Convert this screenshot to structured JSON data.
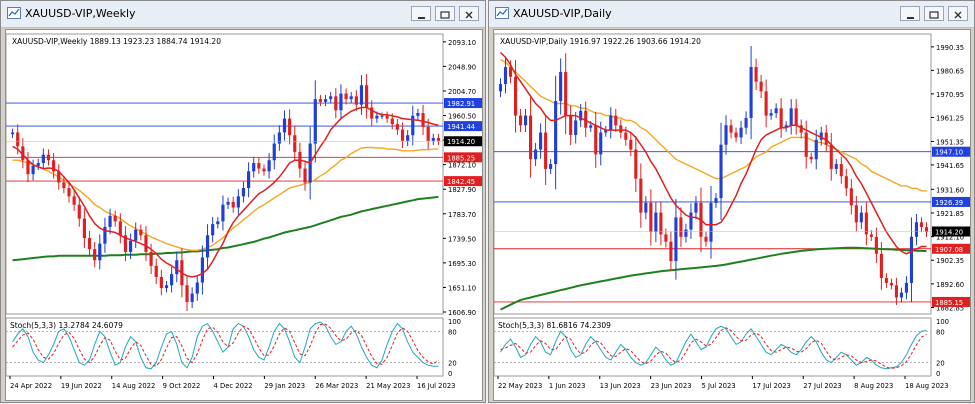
{
  "colors": {
    "bull": "#1f3fd6",
    "bear": "#e02020",
    "ma_fast": "#e02020",
    "ma_mid": "#f5a623",
    "ma_slow": "#208020",
    "stoch_main": "#20a8b8",
    "stoch_signal": "#e02020",
    "hline_blue": "#2040e0",
    "hline_red": "#e02020"
  },
  "weekly": {
    "window_title": "XAUUSD-VIP,Weekly",
    "header": "XAUUSD-VIP,Weekly  1889.13 1923.23 1884.74 1914.20",
    "stoch_label": "Stoch(5,3,3) 13.2784 24.6079",
    "price_ticks": [
      "2093.10",
      "2048.90",
      "2004.70",
      "1960.50",
      "1916.30",
      "1872.10",
      "1827.90",
      "1783.70",
      "1739.50",
      "1695.30",
      "1651.10",
      "1606.90"
    ],
    "price_tick_values": [
      2093.1,
      2048.9,
      2004.7,
      1960.5,
      1916.3,
      1872.1,
      1827.9,
      1783.7,
      1739.5,
      1695.3,
      1651.1,
      1606.9
    ],
    "hlines": [
      {
        "label": "1982.91",
        "value": 1982.91,
        "color": "blue"
      },
      {
        "label": "1941.44",
        "value": 1941.44,
        "color": "blue"
      },
      {
        "label": "1885.25",
        "value": 1885.25,
        "color": "red"
      },
      {
        "label": "1842.45",
        "value": 1842.45,
        "color": "red"
      }
    ],
    "current_price": "1914.20",
    "current_value": 1914.2,
    "stoch_ticks": [
      "100",
      "80",
      "20",
      "0"
    ],
    "date_labels": [
      "24 Apr 2022",
      "19 Jun 2022",
      "14 Aug 2022",
      "9 Oct 2022",
      "4 Dec 2022",
      "29 Jan 2023",
      "26 Mar 2023",
      "21 May 2023",
      "16 Jul 2023"
    ],
    "chart_data": {
      "type": "candlestick",
      "ylim": [
        1606.9,
        2100
      ],
      "close_path": [
        1930,
        1905,
        1880,
        1855,
        1870,
        1875,
        1890,
        1880,
        1860,
        1840,
        1830,
        1815,
        1800,
        1775,
        1740,
        1720,
        1700,
        1730,
        1760,
        1780,
        1770,
        1745,
        1715,
        1735,
        1755,
        1745,
        1715,
        1690,
        1670,
        1650,
        1655,
        1675,
        1700,
        1655,
        1625,
        1640,
        1660,
        1705,
        1745,
        1765,
        1770,
        1800,
        1805,
        1795,
        1815,
        1830,
        1860,
        1875,
        1865,
        1860,
        1880,
        1910,
        1930,
        1955,
        1925,
        1895,
        1865,
        1840,
        1910,
        1990,
        1985,
        1990,
        1995,
        1970,
        2000,
        1990,
        1995,
        1980,
        2015,
        1975,
        1955,
        1960,
        1960,
        1955,
        1945,
        1935,
        1915,
        1925,
        1960,
        1965,
        1940,
        1915,
        1920,
        1915
      ],
      "ma_fast": [
        1905,
        1900,
        1890,
        1880,
        1872,
        1868,
        1865,
        1866,
        1865,
        1860,
        1850,
        1840,
        1827,
        1812,
        1797,
        1780,
        1766,
        1758,
        1753,
        1752,
        1750,
        1745,
        1740,
        1737,
        1734,
        1730,
        1726,
        1720,
        1712,
        1702,
        1695,
        1690,
        1684,
        1677,
        1672,
        1670,
        1672,
        1676,
        1684,
        1698,
        1715,
        1730,
        1752,
        1768,
        1780,
        1790,
        1800,
        1810,
        1820,
        1825,
        1832,
        1840,
        1850,
        1862,
        1875,
        1880,
        1880,
        1878,
        1875,
        1890,
        1905,
        1918,
        1935,
        1945,
        1955,
        1962,
        1968,
        1972,
        1975,
        1975,
        1970,
        1965,
        1962,
        1962,
        1960,
        1958,
        1955,
        1954,
        1953,
        1952,
        1950,
        1948,
        1945,
        1943
      ],
      "ma_mid": [
        1880,
        1880,
        1878,
        1875,
        1872,
        1868,
        1864,
        1860,
        1855,
        1850,
        1844,
        1838,
        1832,
        1826,
        1818,
        1810,
        1800,
        1795,
        1788,
        1784,
        1780,
        1775,
        1768,
        1762,
        1757,
        1752,
        1747,
        1742,
        1738,
        1734,
        1730,
        1727,
        1724,
        1721,
        1719,
        1718,
        1718,
        1720,
        1723,
        1727,
        1734,
        1740,
        1750,
        1758,
        1765,
        1773,
        1780,
        1788,
        1795,
        1800,
        1806,
        1812,
        1818,
        1824,
        1830,
        1833,
        1835,
        1838,
        1840,
        1845,
        1852,
        1857,
        1865,
        1872,
        1880,
        1885,
        1892,
        1897,
        1902,
        1903,
        1903,
        1902,
        1902,
        1900,
        1900,
        1899,
        1897,
        1897,
        1897,
        1898,
        1899,
        1899,
        1900,
        1900
      ],
      "ma_slow": [
        1700,
        1701,
        1702,
        1703,
        1704,
        1705,
        1706,
        1707,
        1707,
        1708,
        1708,
        1708,
        1708,
        1708,
        1708,
        1708,
        1708,
        1708,
        1708,
        1709,
        1709,
        1709,
        1710,
        1710,
        1710,
        1711,
        1711,
        1711,
        1712,
        1712,
        1713,
        1713,
        1714,
        1714,
        1715,
        1716,
        1716,
        1717,
        1718,
        1719,
        1720,
        1722,
        1723,
        1725,
        1727,
        1729,
        1731,
        1733,
        1736,
        1739,
        1741,
        1744,
        1747,
        1750,
        1752,
        1754,
        1756,
        1758,
        1760,
        1763,
        1766,
        1769,
        1772,
        1775,
        1778,
        1780,
        1782,
        1785,
        1788,
        1790,
        1792,
        1794,
        1796,
        1798,
        1800,
        1802,
        1804,
        1806,
        1808,
        1810,
        1811,
        1812,
        1813,
        1814
      ],
      "stoch_main": [
        60,
        75,
        85,
        70,
        40,
        25,
        20,
        35,
        55,
        80,
        85,
        70,
        45,
        20,
        15,
        25,
        55,
        80,
        70,
        40,
        15,
        20,
        50,
        70,
        60,
        30,
        10,
        8,
        20,
        50,
        75,
        80,
        55,
        20,
        10,
        30,
        70,
        90,
        95,
        80,
        60,
        40,
        50,
        85,
        95,
        90,
        70,
        45,
        30,
        25,
        50,
        80,
        95,
        85,
        60,
        30,
        20,
        50,
        85,
        95,
        98,
        90,
        70,
        55,
        60,
        80,
        90,
        75,
        50,
        30,
        15,
        10,
        25,
        55,
        80,
        95,
        85,
        60,
        40,
        30,
        20,
        15,
        13,
        13
      ],
      "stoch_signal": [
        50,
        62,
        73,
        77,
        65,
        45,
        30,
        27,
        37,
        57,
        73,
        78,
        67,
        45,
        27,
        20,
        32,
        53,
        68,
        63,
        42,
        25,
        28,
        47,
        60,
        53,
        33,
        16,
        13,
        26,
        48,
        68,
        70,
        52,
        28,
        20,
        37,
        63,
        85,
        88,
        78,
        60,
        50,
        58,
        77,
        90,
        85,
        68,
        48,
        33,
        35,
        52,
        75,
        87,
        80,
        58,
        37,
        33,
        52,
        77,
        93,
        94,
        86,
        72,
        62,
        65,
        77,
        82,
        72,
        52,
        32,
        18,
        17,
        30,
        53,
        77,
        87,
        80,
        62,
        43,
        30,
        22,
        17,
        25
      ]
    }
  },
  "daily": {
    "window_title": "XAUUSD-VIP,Daily",
    "header": "XAUUSD-VIP,Daily  1916.97 1922.26 1903.66 1914.20",
    "stoch_label": "Stoch(5,3,3) 81.6816 74.2309",
    "price_ticks": [
      "1990.35",
      "1980.65",
      "1970.95",
      "1961.25",
      "1951.35",
      "1941.65",
      "1931.60",
      "1921.85",
      "1912.10",
      "1902.35",
      "1892.60",
      "1882.85"
    ],
    "price_tick_values": [
      1990.35,
      1980.65,
      1970.95,
      1961.25,
      1951.35,
      1941.65,
      1931.6,
      1921.85,
      1912.1,
      1902.35,
      1892.6,
      1882.85
    ],
    "hlines": [
      {
        "label": "1947.10",
        "value": 1947.1,
        "color": "blue"
      },
      {
        "label": "1926.39",
        "value": 1926.39,
        "color": "blue"
      },
      {
        "label": "1907.08",
        "value": 1907.08,
        "color": "red"
      },
      {
        "label": "1885.15",
        "value": 1885.15,
        "color": "red"
      }
    ],
    "current_price": "1914.20",
    "current_value": 1914.2,
    "stoch_ticks": [
      "100",
      "80",
      "20",
      "0"
    ],
    "date_labels": [
      "22 May 2023",
      "1 Jun 2023",
      "13 Jun 2023",
      "23 Jun 2023",
      "5 Jul 2023",
      "17 Jul 2023",
      "27 Jul 2023",
      "8 Aug 2023",
      "18 Aug 2023"
    ],
    "chart_data": {
      "type": "candlestick",
      "ylim": [
        1881,
        1994
      ],
      "close_path": [
        1975,
        1982,
        1978,
        1962,
        1958,
        1962,
        1944,
        1948,
        1955,
        1940,
        1942,
        1968,
        1980,
        1962,
        1954,
        1960,
        1964,
        1957,
        1958,
        1946,
        1955,
        1956,
        1962,
        1958,
        1955,
        1952,
        1948,
        1936,
        1922,
        1926,
        1914,
        1922,
        1913,
        1910,
        1902,
        1920,
        1912,
        1915,
        1922,
        1926,
        1912,
        1910,
        1926,
        1928,
        1950,
        1958,
        1955,
        1953,
        1957,
        1961,
        1982,
        1976,
        1972,
        1962,
        1963,
        1965,
        1957,
        1958,
        1965,
        1958,
        1955,
        1945,
        1944,
        1952,
        1955,
        1950,
        1940,
        1942,
        1937,
        1932,
        1925,
        1918,
        1922,
        1913,
        1912,
        1905,
        1895,
        1893,
        1892,
        1887,
        1889,
        1893,
        1912,
        1918,
        1916,
        1914
      ],
      "ma_fast": [
        1988,
        1986,
        1983,
        1979,
        1976,
        1973,
        1970,
        1967,
        1965,
        1962,
        1960,
        1960,
        1961,
        1962,
        1962,
        1962,
        1961,
        1960,
        1959,
        1958,
        1957,
        1956,
        1956,
        1956,
        1956,
        1956,
        1955,
        1953,
        1950,
        1947,
        1943,
        1940,
        1936,
        1932,
        1928,
        1925,
        1923,
        1921,
        1920,
        1920,
        1919,
        1917,
        1917,
        1917,
        1918,
        1921,
        1925,
        1929,
        1934,
        1938,
        1943,
        1948,
        1952,
        1954,
        1955,
        1956,
        1957,
        1957,
        1958,
        1958,
        1957,
        1956,
        1955,
        1954,
        1953,
        1952,
        1950,
        1948,
        1946,
        1944,
        1941,
        1937,
        1934,
        1930,
        1926,
        1922,
        1918,
        1914,
        1911,
        1908,
        1906,
        1905,
        1906,
        1907,
        1908,
        1908
      ],
      "ma_mid": [
        1985,
        1984,
        1982,
        1980,
        1978,
        1976,
        1974,
        1972,
        1970,
        1969,
        1968,
        1967,
        1967,
        1967,
        1966,
        1966,
        1965,
        1965,
        1964,
        1963,
        1963,
        1962,
        1962,
        1961,
        1961,
        1960,
        1960,
        1959,
        1957,
        1956,
        1954,
        1952,
        1950,
        1948,
        1946,
        1944,
        1943,
        1942,
        1941,
        1940,
        1939,
        1938,
        1937,
        1936,
        1936,
        1937,
        1938,
        1939,
        1940,
        1941,
        1943,
        1945,
        1946,
        1947,
        1949,
        1950,
        1951,
        1952,
        1953,
        1953,
        1953,
        1953,
        1952,
        1951,
        1951,
        1950,
        1949,
        1948,
        1947,
        1946,
        1945,
        1944,
        1942,
        1941,
        1939,
        1938,
        1937,
        1936,
        1935,
        1934,
        1933,
        1933,
        1932,
        1932,
        1931,
        1931
      ],
      "ma_slow": [
        1882,
        1883,
        1884,
        1885,
        1886,
        1886.5,
        1887,
        1887.5,
        1888,
        1888.5,
        1889,
        1889.5,
        1890,
        1890.5,
        1891,
        1891.5,
        1892,
        1892.4,
        1892.8,
        1893.2,
        1893.6,
        1894,
        1894.4,
        1894.8,
        1895.2,
        1895.6,
        1896,
        1896.3,
        1896.6,
        1896.9,
        1897.2,
        1897.5,
        1897.8,
        1898,
        1898.2,
        1898.4,
        1898.6,
        1898.8,
        1899,
        1899.2,
        1899.4,
        1899.6,
        1899.8,
        1900,
        1900.3,
        1900.6,
        1901,
        1901.4,
        1901.8,
        1902.2,
        1902.6,
        1903,
        1903.4,
        1903.8,
        1904.2,
        1904.6,
        1905,
        1905.3,
        1905.6,
        1905.9,
        1906.2,
        1906.4,
        1906.6,
        1906.8,
        1907,
        1907.1,
        1907.2,
        1907.3,
        1907.4,
        1907.5,
        1907.5,
        1907.5,
        1907.4,
        1907.3,
        1907.2,
        1907.1,
        1907,
        1906.9,
        1906.8,
        1906.7,
        1906.6,
        1906.5,
        1906.4,
        1906.3,
        1906.2,
        1906.1
      ],
      "stoch_main": [
        40,
        55,
        65,
        50,
        30,
        35,
        55,
        70,
        60,
        40,
        35,
        60,
        80,
        70,
        45,
        30,
        35,
        55,
        70,
        60,
        45,
        30,
        25,
        40,
        55,
        45,
        30,
        20,
        15,
        20,
        35,
        50,
        40,
        25,
        15,
        20,
        40,
        60,
        75,
        60,
        45,
        50,
        70,
        85,
        90,
        85,
        70,
        55,
        60,
        75,
        85,
        70,
        55,
        40,
        35,
        45,
        55,
        50,
        40,
        35,
        45,
        60,
        70,
        60,
        40,
        25,
        20,
        30,
        40,
        35,
        25,
        15,
        20,
        30,
        25,
        15,
        10,
        8,
        10,
        12,
        20,
        35,
        55,
        72,
        80,
        82
      ],
      "stoch_signal": [
        45,
        48,
        53,
        57,
        48,
        38,
        40,
        53,
        62,
        57,
        45,
        45,
        58,
        70,
        65,
        48,
        37,
        40,
        53,
        62,
        58,
        45,
        33,
        32,
        40,
        47,
        43,
        32,
        22,
        18,
        23,
        35,
        42,
        38,
        27,
        20,
        25,
        40,
        58,
        65,
        60,
        52,
        55,
        68,
        82,
        87,
        82,
        70,
        62,
        63,
        73,
        77,
        70,
        55,
        43,
        40,
        45,
        50,
        48,
        42,
        40,
        47,
        58,
        63,
        57,
        42,
        28,
        25,
        30,
        35,
        33,
        25,
        20,
        22,
        25,
        23,
        17,
        11,
        9,
        10,
        14,
        22,
        37,
        54,
        69,
        74
      ]
    }
  }
}
